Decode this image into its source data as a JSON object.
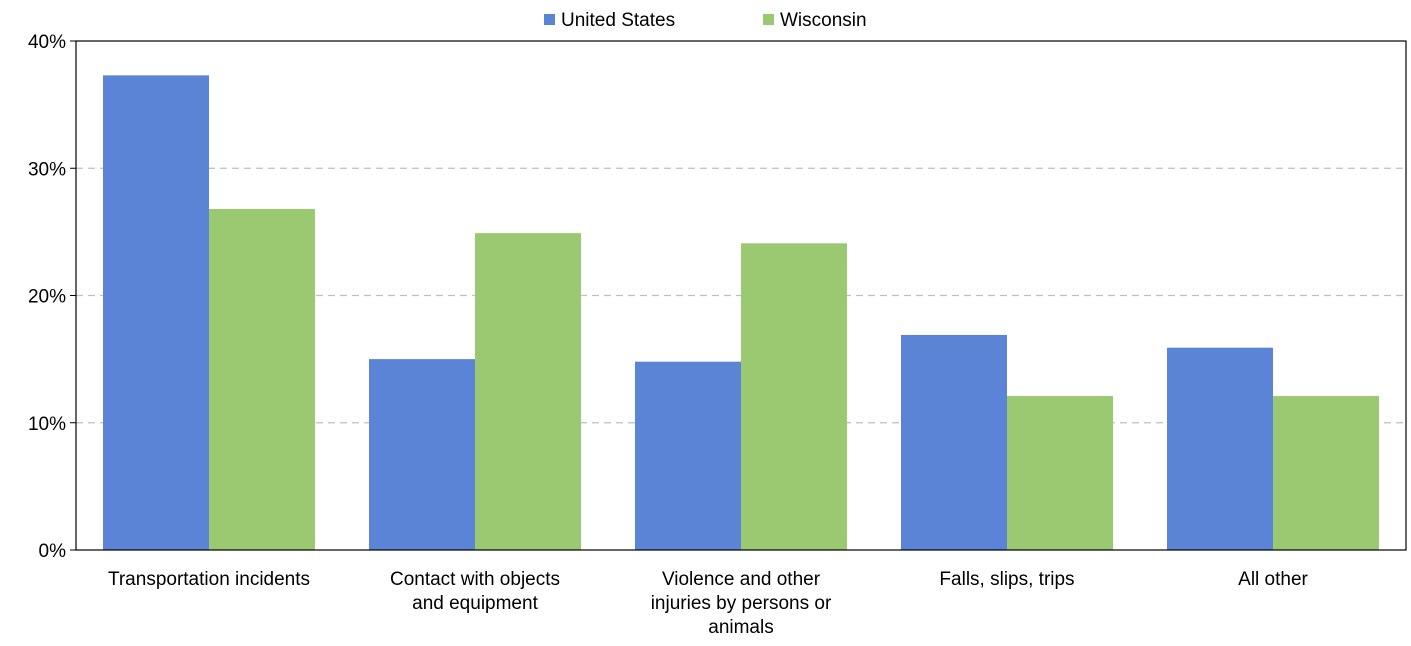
{
  "chart_data": {
    "type": "bar",
    "categories": [
      [
        "Transportation incidents"
      ],
      [
        "Contact with objects",
        "and equipment"
      ],
      [
        "Violence and other",
        "injuries by persons or",
        "animals"
      ],
      [
        "Falls, slips, trips"
      ],
      [
        "All other"
      ]
    ],
    "series": [
      {
        "name": "United States",
        "values": [
          37.3,
          15.0,
          14.8,
          16.9,
          15.9
        ],
        "color": "#5b84d6"
      },
      {
        "name": "Wisconsin",
        "values": [
          26.8,
          24.9,
          24.1,
          12.1,
          12.1
        ],
        "color": "#9ac972"
      }
    ],
    "y_ticks": [
      "0%",
      "10%",
      "20%",
      "30%",
      "40%"
    ],
    "ylim": [
      0,
      40
    ],
    "grid": "dashed horizontal",
    "legend_position": "top-center",
    "title": "",
    "xlabel": "",
    "ylabel": ""
  }
}
